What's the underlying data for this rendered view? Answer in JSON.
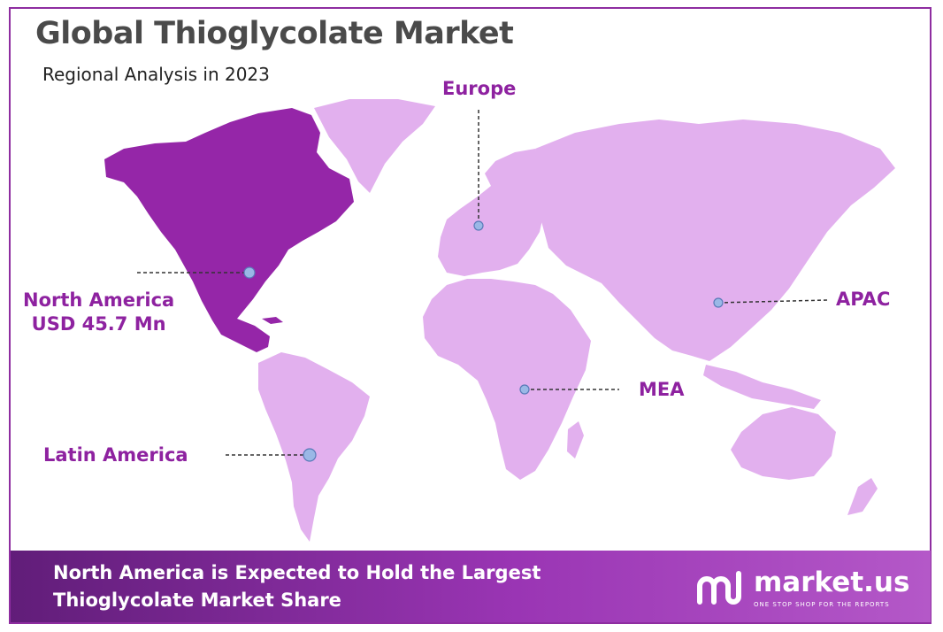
{
  "header": {
    "title": "Global Thioglycolate Market",
    "subtitle": "Regional Analysis in 2023"
  },
  "regions": {
    "europe": {
      "label": "Europe"
    },
    "north_america": {
      "label": "North America",
      "value": "USD 45.7 Mn",
      "highlighted": true
    },
    "apac": {
      "label": "APAC"
    },
    "mea": {
      "label": "MEA"
    },
    "latin_america": {
      "label": "Latin America"
    }
  },
  "colors": {
    "highlight_region": "#9526a8",
    "other_regions": "#e2b0ee",
    "label_text": "#8e22a0",
    "marker": "#9ab8e6",
    "frame": "#8e2da0",
    "footer_start": "#611d79",
    "footer_end": "#b458c8"
  },
  "footer": {
    "line1": "North America is Expected to Hold the Largest",
    "line2": "Thioglycolate Market Share"
  },
  "brand": {
    "icon": "market-us-logo-icon",
    "name": "market.us",
    "tagline": "ONE STOP SHOP FOR THE REPORTS"
  }
}
